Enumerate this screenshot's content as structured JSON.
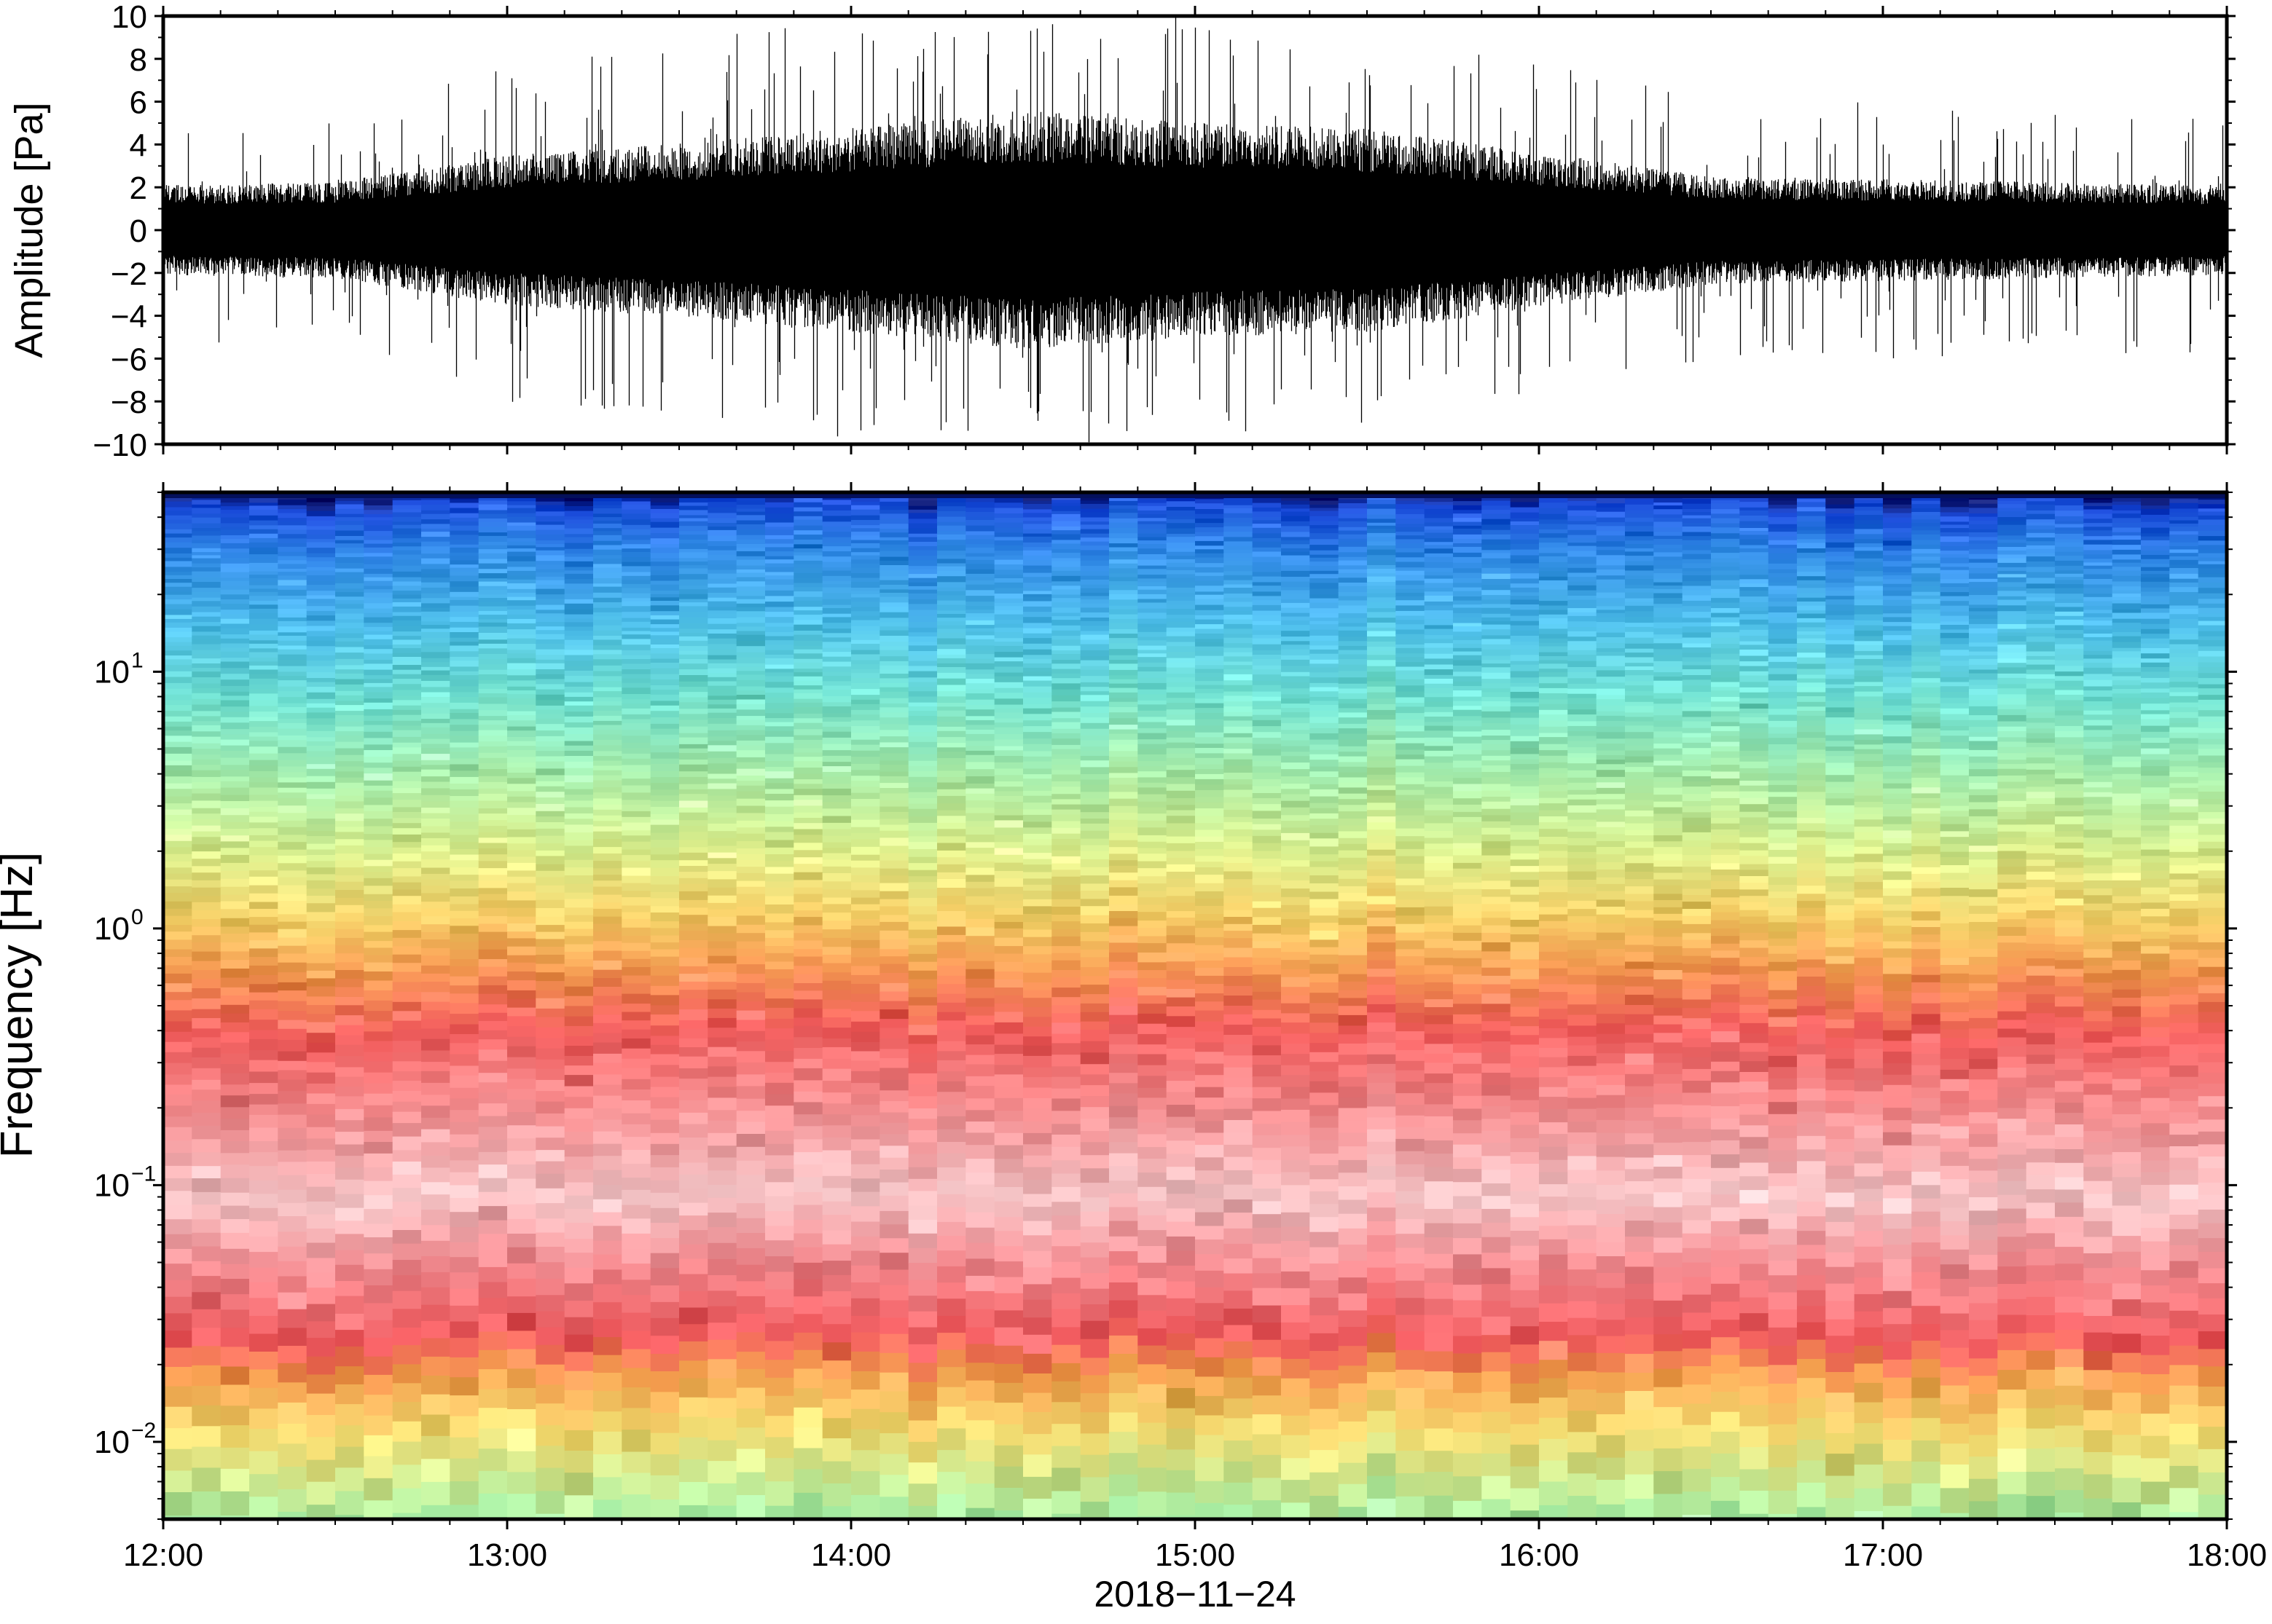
{
  "chart_data": [
    {
      "type": "line",
      "title": "",
      "ylabel": "Amplitude [Pa]",
      "xlabel": "",
      "ylim": [
        -10,
        10
      ],
      "yticks": [
        -10,
        -8,
        -6,
        -4,
        -2,
        0,
        2,
        4,
        6,
        8,
        10
      ],
      "ytick_labels": [
        "−10",
        "−8",
        "−6",
        "−4",
        "−2",
        "0",
        "2",
        "4",
        "6",
        "8",
        "10"
      ],
      "x_range": [
        "12:00",
        "18:00"
      ],
      "series": [
        {
          "color": "#000000",
          "envelope_times": [
            "12:00",
            "12:30",
            "13:00",
            "13:30",
            "14:00",
            "14:30",
            "15:00",
            "15:30",
            "16:00",
            "16:30",
            "17:00",
            "17:30",
            "18:00"
          ],
          "typical_abs_amplitude": [
            1.5,
            1.6,
            2.5,
            2.9,
            3.4,
            4.0,
            3.6,
            3.4,
            2.6,
            1.8,
            1.7,
            1.6,
            1.5
          ],
          "peak_abs_amplitude": [
            6,
            5,
            8,
            9,
            10,
            10,
            10,
            9,
            8,
            6,
            6,
            6,
            6
          ]
        }
      ]
    },
    {
      "type": "heatmap",
      "title": "",
      "ylabel": "Frequency [Hz]",
      "xlabel": "2018−11−24",
      "yscale": "log",
      "ylim": [
        0.005,
        50
      ],
      "yticks": [
        0.01,
        0.1,
        1,
        10
      ],
      "ytick_labels": [
        {
          "base": "10",
          "exp": "−2"
        },
        {
          "base": "10",
          "exp": "−1"
        },
        {
          "base": "10",
          "exp": "0"
        },
        {
          "base": "10",
          "exp": "1"
        }
      ],
      "x_range": [
        "12:00",
        "18:00"
      ],
      "xtick_labels": [
        "12:00",
        "13:00",
        "14:00",
        "15:00",
        "16:00",
        "17:00",
        "18:00"
      ],
      "colormap": "rainbow (blue = low power, red/pink = high power)",
      "frequency_bands": [
        {
          "f": 50,
          "level": 0.0,
          "color": "#051270"
        },
        {
          "f": 45,
          "level": 0.08,
          "color": "#1848d8"
        },
        {
          "f": 30,
          "level": 0.16,
          "color": "#2f86e6"
        },
        {
          "f": 15,
          "level": 0.27,
          "color": "#4fc0ea"
        },
        {
          "f": 8,
          "level": 0.37,
          "color": "#72e2d2"
        },
        {
          "f": 4,
          "level": 0.47,
          "color": "#a6ecaa"
        },
        {
          "f": 2,
          "level": 0.55,
          "color": "#dcf08e"
        },
        {
          "f": 1.1,
          "level": 0.63,
          "color": "#f6d068"
        },
        {
          "f": 0.7,
          "level": 0.72,
          "color": "#f59a52"
        },
        {
          "f": 0.4,
          "level": 0.82,
          "color": "#f25d5d"
        },
        {
          "f": 0.15,
          "level": 0.9,
          "color": "#f5a0a3"
        },
        {
          "f": 0.09,
          "level": 0.95,
          "color": "#f8c8ca"
        },
        {
          "f": 0.05,
          "level": 0.88,
          "color": "#f38e93"
        },
        {
          "f": 0.025,
          "level": 0.82,
          "color": "#f15a5e"
        },
        {
          "f": 0.018,
          "level": 0.72,
          "color": "#f6a050"
        },
        {
          "f": 0.011,
          "level": 0.62,
          "color": "#f6dd72"
        },
        {
          "f": 0.005,
          "level": 0.5,
          "color": "#a8eea4"
        }
      ]
    }
  ]
}
